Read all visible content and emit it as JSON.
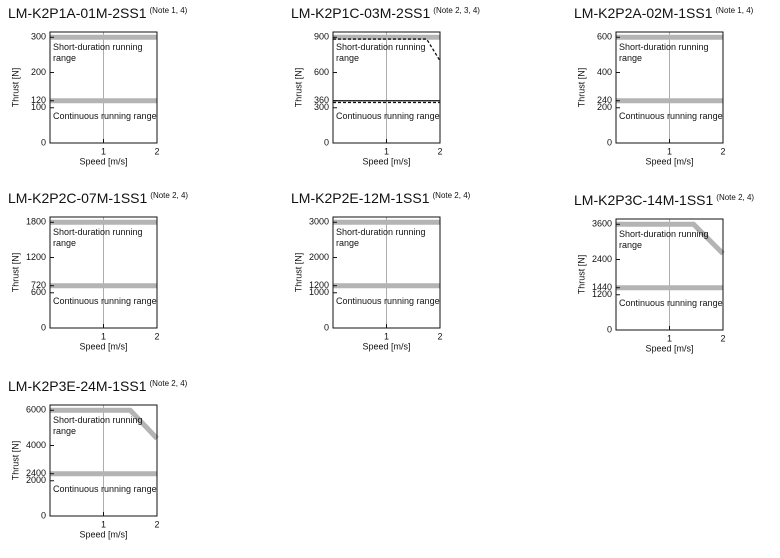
{
  "chart_data": [
    {
      "type": "line",
      "title": "LM-K2P1A-01M-2SS1",
      "note": "(Note 1, 4)",
      "xlabel": "Speed [m/s]",
      "ylabel": "Thrust [N]",
      "xlim": [
        0,
        2
      ],
      "xticks": [
        0,
        1,
        2
      ],
      "ylim": [
        0,
        315
      ],
      "yticks": [
        0,
        100,
        120,
        200,
        300
      ],
      "grid": true,
      "annotations": [
        "Short-duration running range",
        "Continuous running range"
      ],
      "series": [
        {
          "color": "#b4b4b4",
          "x": [
            0,
            2
          ],
          "values": [
            300,
            300
          ]
        },
        {
          "color": "#b4b4b4",
          "x": [
            0,
            2
          ],
          "values": [
            120,
            120
          ]
        }
      ]
    },
    {
      "type": "line",
      "title": "LM-K2P1C-03M-2SS1",
      "note": "(Note 2, 3, 4)",
      "xlabel": "Speed [m/s]",
      "ylabel": "Thrust [N]",
      "xlim": [
        0,
        2
      ],
      "xticks": [
        0,
        1,
        2
      ],
      "ylim": [
        0,
        945
      ],
      "yticks": [
        0,
        300,
        360,
        600,
        900
      ],
      "grid": true,
      "annotations": [
        "Short-duration running range",
        "Continuous running range"
      ],
      "series": [
        {
          "color": "#b4b4b4",
          "x": [
            0,
            2
          ],
          "values": [
            900,
            900
          ]
        },
        {
          "color": "#111111",
          "dash": true,
          "x": [
            0,
            1.75,
            2
          ],
          "values": [
            885,
            885,
            700
          ]
        },
        {
          "color": "#111111",
          "x": [
            0,
            2
          ],
          "values": [
            360,
            360
          ]
        },
        {
          "color": "#111111",
          "dash": true,
          "x": [
            0,
            2
          ],
          "values": [
            345,
            345
          ]
        }
      ]
    },
    {
      "type": "line",
      "title": "LM-K2P2A-02M-1SS1",
      "note": "(Note 1, 4)",
      "xlabel": "Speed [m/s]",
      "ylabel": "Thrust [N]",
      "xlim": [
        0,
        2
      ],
      "xticks": [
        0,
        1,
        2
      ],
      "ylim": [
        0,
        630
      ],
      "yticks": [
        0,
        200,
        240,
        400,
        600
      ],
      "grid": true,
      "annotations": [
        "Short-duration running range",
        "Continuous running range"
      ],
      "series": [
        {
          "color": "#b4b4b4",
          "x": [
            0,
            2
          ],
          "values": [
            600,
            600
          ]
        },
        {
          "color": "#b4b4b4",
          "x": [
            0,
            2
          ],
          "values": [
            240,
            240
          ]
        }
      ]
    },
    {
      "type": "line",
      "title": "LM-K2P2C-07M-1SS1",
      "note": "(Note 2, 4)",
      "xlabel": "Speed [m/s]",
      "ylabel": "Thrust [N]",
      "xlim": [
        0,
        2
      ],
      "xticks": [
        0,
        1,
        2
      ],
      "ylim": [
        0,
        1890
      ],
      "yticks": [
        0,
        600,
        720,
        1200,
        1800
      ],
      "grid": true,
      "annotations": [
        "Short-duration running range",
        "Continuous running range"
      ],
      "series": [
        {
          "color": "#b4b4b4",
          "x": [
            0,
            2
          ],
          "values": [
            1800,
            1800
          ]
        },
        {
          "color": "#b4b4b4",
          "x": [
            0,
            2
          ],
          "values": [
            720,
            720
          ]
        }
      ]
    },
    {
      "type": "line",
      "title": "LM-K2P2E-12M-1SS1",
      "note": "(Note 2, 4)",
      "xlabel": "Speed [m/s]",
      "ylabel": "Thrust [N]",
      "xlim": [
        0,
        2
      ],
      "xticks": [
        0,
        1,
        2
      ],
      "ylim": [
        0,
        3150
      ],
      "yticks": [
        0,
        1000,
        1200,
        2000,
        3000
      ],
      "grid": true,
      "annotations": [
        "Short-duration running range",
        "Continuous running range"
      ],
      "series": [
        {
          "color": "#b4b4b4",
          "x": [
            0,
            2
          ],
          "values": [
            3000,
            3000
          ]
        },
        {
          "color": "#b4b4b4",
          "x": [
            0,
            2
          ],
          "values": [
            1200,
            1200
          ]
        }
      ]
    },
    {
      "type": "line",
      "title": "LM-K2P3C-14M-1SS1",
      "note": "(Note 2, 4)",
      "xlabel": "Speed [m/s]",
      "ylabel": "Thrust [N]",
      "xlim": [
        0,
        2
      ],
      "xticks": [
        0,
        1,
        2
      ],
      "ylim": [
        0,
        3780
      ],
      "yticks": [
        0,
        1200,
        1440,
        2400,
        3600
      ],
      "grid": true,
      "annotations": [
        "Short-duration running range",
        "Continuous running range"
      ],
      "series": [
        {
          "color": "#b4b4b4",
          "x": [
            0,
            1.45,
            2
          ],
          "values": [
            3600,
            3600,
            2600
          ]
        },
        {
          "color": "#b4b4b4",
          "x": [
            0,
            2
          ],
          "values": [
            1440,
            1440
          ]
        }
      ]
    },
    {
      "type": "line",
      "title": "LM-K2P3E-24M-1SS1",
      "note": "(Note 2, 4)",
      "xlabel": "Speed [m/s]",
      "ylabel": "Thrust [N]",
      "xlim": [
        0,
        2
      ],
      "xticks": [
        0,
        1,
        2
      ],
      "ylim": [
        0,
        6300
      ],
      "yticks": [
        0,
        2000,
        2400,
        4000,
        6000
      ],
      "grid": true,
      "annotations": [
        "Short-duration running range",
        "Continuous running range"
      ],
      "series": [
        {
          "color": "#b4b4b4",
          "x": [
            0,
            1.5,
            2
          ],
          "values": [
            6000,
            6000,
            4400
          ]
        },
        {
          "color": "#b4b4b4",
          "x": [
            0,
            2
          ],
          "values": [
            2400,
            2400
          ]
        }
      ]
    }
  ]
}
